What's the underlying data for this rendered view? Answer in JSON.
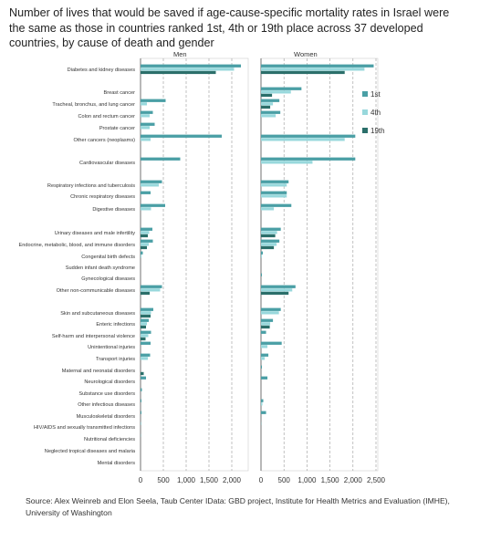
{
  "title": "Number  of lives that would be saved if age-cause-specific mortality rates in Israel were the same as those in countries ranked 1st, 4th or 19th place across 37 developed countries, by cause of death and gender",
  "source": "Source:  Alex Weinreb and Elon Seela,  Taub Center  IData: GBD project, Institute for Health  Metrics and Evaluation  (IMHE), University of Washington",
  "colors": {
    "rank1": "#4a9fa5",
    "rank4": "#98d8dc",
    "rank19": "#2b6f6a",
    "grid": "#999999",
    "axis": "#555555"
  },
  "chart_data": [
    {
      "type": "bar",
      "panel": "Men",
      "orientation": "horizontal",
      "categories": [
        "Diabetes and kidney diseases",
        "Breast cancer",
        "Tracheal, bronchus, and lung cancer",
        "Colon and rectum cancer",
        "Prostate cancer",
        "Other cancers (neoplasms)",
        "Cardiovascular diseases",
        "Respiratory infections and tuberculosis",
        "Chronic respiratory diseases",
        "Digestive diseases",
        "Urinary diseases and male infertility",
        "Endocrine, metabolic, blood, and immune disorders",
        "Congenital birth defects",
        "Sudden infant death syndrome",
        "Gynecological diseases",
        "Other non-communicable diseases",
        "Skin and subcutaneous diseases",
        "Enteric infections",
        "Self-harm and interpersonal violence",
        "Unintentional injuries",
        "Transport injuries",
        "Maternal and neonatal disorders",
        "Neurological disorders",
        "Substance use disorders",
        "Other infectious diseases",
        "Musculoskeletal disorders",
        "HIV/AIDS and sexually transmitted infections",
        "Nutritional deficiencies",
        "Neglected tropical diseases and malaria",
        "Mental disorders"
      ],
      "series": [
        {
          "name": "1st",
          "values": [
            2200,
            0,
            550,
            270,
            310,
            1780,
            870,
            470,
            220,
            540,
            260,
            270,
            50,
            0,
            0,
            470,
            280,
            180,
            230,
            220,
            210,
            0,
            120,
            30,
            20,
            20,
            10,
            5,
            0,
            0
          ]
        },
        {
          "name": "4th",
          "values": [
            2050,
            0,
            140,
            200,
            200,
            220,
            0,
            400,
            0,
            230,
            190,
            180,
            20,
            0,
            0,
            430,
            230,
            140,
            170,
            0,
            160,
            0,
            0,
            0,
            0,
            0,
            0,
            0,
            0,
            0
          ]
        },
        {
          "name": "19th",
          "values": [
            1650,
            0,
            0,
            0,
            0,
            0,
            0,
            0,
            0,
            0,
            160,
            140,
            0,
            0,
            0,
            200,
            220,
            120,
            110,
            0,
            0,
            70,
            0,
            0,
            0,
            0,
            0,
            0,
            0,
            0
          ]
        }
      ],
      "xlim": [
        0,
        2300
      ],
      "xticks": [
        "0",
        "500",
        "1,000",
        "1,500",
        "2,000"
      ]
    },
    {
      "type": "bar",
      "panel": "Women",
      "orientation": "horizontal",
      "categories": [
        "Diabetes and kidney diseases",
        "Breast cancer",
        "Tracheal, bronchus, and lung cancer",
        "Colon and rectum cancer",
        "Prostate cancer",
        "Other cancers (neoplasms)",
        "Cardiovascular diseases",
        "Respiratory infections and tuberculosis",
        "Chronic respiratory diseases",
        "Digestive diseases",
        "Urinary diseases and male infertility",
        "Endocrine, metabolic, blood, and immune disorders",
        "Congenital birth defects",
        "Sudden infant death syndrome",
        "Gynecological diseases",
        "Other non-communicable diseases",
        "Skin and subcutaneous diseases",
        "Enteric infections",
        "Self-harm and interpersonal violence",
        "Unintentional injuries",
        "Transport injuries",
        "Maternal and neonatal disorders",
        "Neurological disorders",
        "Substance use disorders",
        "Other infectious diseases",
        "Musculoskeletal disorders",
        "HIV/AIDS and sexually transmitted infections",
        "Nutritional deficiencies",
        "Neglected tropical diseases and malaria",
        "Mental disorders"
      ],
      "series": [
        {
          "name": "1st",
          "values": [
            2450,
            880,
            400,
            420,
            0,
            2050,
            2050,
            600,
            560,
            660,
            430,
            400,
            40,
            0,
            20,
            750,
            430,
            260,
            110,
            450,
            160,
            20,
            140,
            0,
            50,
            110,
            5,
            0,
            0,
            0
          ]
        },
        {
          "name": "4th",
          "values": [
            2250,
            650,
            260,
            320,
            0,
            1820,
            1120,
            560,
            560,
            280,
            350,
            340,
            20,
            0,
            0,
            680,
            390,
            200,
            0,
            140,
            80,
            0,
            0,
            0,
            30,
            0,
            0,
            0,
            0,
            0
          ]
        },
        {
          "name": "19th",
          "values": [
            1820,
            240,
            200,
            0,
            0,
            0,
            0,
            0,
            0,
            0,
            310,
            280,
            0,
            0,
            0,
            600,
            0,
            190,
            0,
            0,
            0,
            0,
            0,
            0,
            0,
            0,
            0,
            0,
            0,
            0
          ]
        }
      ],
      "xlim": [
        0,
        2500
      ],
      "xticks": [
        "0",
        "500",
        "1,000",
        "1,500",
        "2,000",
        "2,500"
      ]
    }
  ],
  "legend": [
    {
      "label": "1st",
      "color": "#4a9fa5"
    },
    {
      "label": "4th",
      "color": "#98d8dc"
    },
    {
      "label": "19th",
      "color": "#2b6f6a"
    }
  ]
}
